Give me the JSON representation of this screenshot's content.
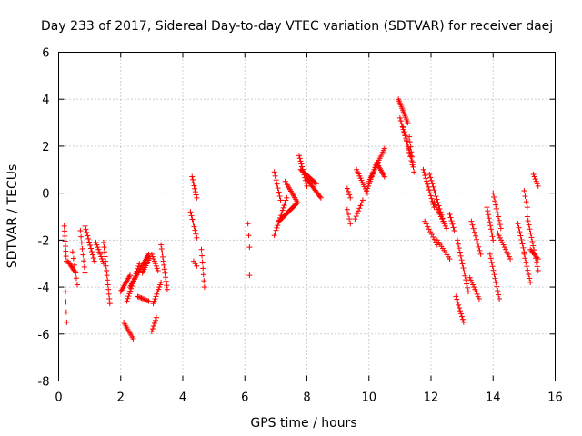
{
  "chart_data": {
    "type": "scatter",
    "title": "Day 233 of 2017, Sidereal Day-to-day VTEC variation (SDTVAR) for receiver daej",
    "xlabel": "GPS time / hours",
    "ylabel": "SDTVAR / TECUs",
    "xlim": [
      0,
      16
    ],
    "ylim": [
      -8,
      6
    ],
    "xticks": [
      "0",
      "2",
      "4",
      "6",
      "8",
      "10",
      "12",
      "14",
      "16"
    ],
    "yticks": [
      "-8",
      "-6",
      "-4",
      "-2",
      "0",
      "2",
      "4",
      "6"
    ],
    "grid": true,
    "marker": "+",
    "color": "#ff0000",
    "series": [
      {
        "name": "SDTVAR",
        "segments": [
          {
            "t0": 0.18,
            "t1": 0.25,
            "v0": -1.4,
            "v1": -2.9,
            "n": 8
          },
          {
            "t0": 0.22,
            "t1": 0.26,
            "v0": -4.2,
            "v1": -5.5,
            "n": 4
          },
          {
            "t0": 0.3,
            "t1": 0.55,
            "v0": -2.9,
            "v1": -3.4,
            "n": 10
          },
          {
            "t0": 0.45,
            "t1": 0.6,
            "v0": -2.5,
            "v1": -3.9,
            "n": 6
          },
          {
            "t0": 0.7,
            "t1": 0.85,
            "v0": -1.6,
            "v1": -3.4,
            "n": 8
          },
          {
            "t0": 0.85,
            "t1": 1.15,
            "v0": -1.4,
            "v1": -2.9,
            "n": 12
          },
          {
            "t0": 1.2,
            "t1": 1.45,
            "v0": -2.1,
            "v1": -3.0,
            "n": 10
          },
          {
            "t0": 1.45,
            "t1": 1.65,
            "v0": -2.1,
            "v1": -4.7,
            "n": 14
          },
          {
            "t0": 2.0,
            "t1": 2.3,
            "v0": -4.2,
            "v1": -3.5,
            "n": 12
          },
          {
            "t0": 2.1,
            "t1": 2.4,
            "v0": -5.5,
            "v1": -6.2,
            "n": 10
          },
          {
            "t0": 2.2,
            "t1": 2.6,
            "v0": -4.6,
            "v1": -3.0,
            "n": 16
          },
          {
            "t0": 2.3,
            "t1": 2.9,
            "v0": -4.0,
            "v1": -2.6,
            "n": 22
          },
          {
            "t0": 2.55,
            "t1": 2.9,
            "v0": -4.4,
            "v1": -4.6,
            "n": 10
          },
          {
            "t0": 2.7,
            "t1": 2.95,
            "v0": -3.4,
            "v1": -2.7,
            "n": 10
          },
          {
            "t0": 3.0,
            "t1": 3.2,
            "v0": -2.6,
            "v1": -3.3,
            "n": 8
          },
          {
            "t0": 3.0,
            "t1": 3.15,
            "v0": -5.9,
            "v1": -5.3,
            "n": 6
          },
          {
            "t0": 3.05,
            "t1": 3.3,
            "v0": -4.7,
            "v1": -3.8,
            "n": 10
          },
          {
            "t0": 3.3,
            "t1": 3.5,
            "v0": -2.2,
            "v1": -4.1,
            "n": 12
          },
          {
            "t0": 4.25,
            "t1": 4.45,
            "v0": -0.8,
            "v1": -1.9,
            "n": 8
          },
          {
            "t0": 4.3,
            "t1": 4.45,
            "v0": 0.7,
            "v1": -0.2,
            "n": 8
          },
          {
            "t0": 4.35,
            "t1": 4.45,
            "v0": -2.9,
            "v1": -3.1,
            "n": 3
          },
          {
            "t0": 4.6,
            "t1": 4.7,
            "v0": -2.4,
            "v1": -4.0,
            "n": 7
          },
          {
            "t0": 6.1,
            "t1": 6.15,
            "v0": -1.3,
            "v1": -2.3,
            "n": 3
          },
          {
            "t0": 6.15,
            "t1": 6.16,
            "v0": -3.5,
            "v1": -3.5,
            "n": 1
          },
          {
            "t0": 6.95,
            "t1": 7.15,
            "v0": 0.9,
            "v1": -0.3,
            "n": 8
          },
          {
            "t0": 6.95,
            "t1": 7.35,
            "v0": -1.8,
            "v1": -0.2,
            "n": 16
          },
          {
            "t0": 7.1,
            "t1": 7.7,
            "v0": -1.2,
            "v1": -0.4,
            "n": 22
          },
          {
            "t0": 7.3,
            "t1": 7.7,
            "v0": 0.5,
            "v1": -0.4,
            "n": 14
          },
          {
            "t0": 7.75,
            "t1": 8.0,
            "v0": 1.6,
            "v1": 0.3,
            "n": 12
          },
          {
            "t0": 7.8,
            "t1": 8.3,
            "v0": 1.0,
            "v1": 0.4,
            "n": 18
          },
          {
            "t0": 8.0,
            "t1": 8.45,
            "v0": 0.6,
            "v1": -0.2,
            "n": 16
          },
          {
            "t0": 9.3,
            "t1": 9.4,
            "v0": 0.2,
            "v1": -0.2,
            "n": 4
          },
          {
            "t0": 9.3,
            "t1": 9.4,
            "v0": -0.7,
            "v1": -1.3,
            "n": 4
          },
          {
            "t0": 9.55,
            "t1": 9.8,
            "v0": -1.1,
            "v1": -0.3,
            "n": 8
          },
          {
            "t0": 9.6,
            "t1": 9.95,
            "v0": 1.0,
            "v1": 0.0,
            "n": 12
          },
          {
            "t0": 9.9,
            "t1": 10.25,
            "v0": 0.0,
            "v1": 1.3,
            "n": 14
          },
          {
            "t0": 10.0,
            "t1": 10.5,
            "v0": 0.5,
            "v1": 1.9,
            "n": 18
          },
          {
            "t0": 10.25,
            "t1": 10.5,
            "v0": 1.3,
            "v1": 0.7,
            "n": 10
          },
          {
            "t0": 10.95,
            "t1": 11.25,
            "v0": 4.0,
            "v1": 3.0,
            "n": 14
          },
          {
            "t0": 11.0,
            "t1": 11.35,
            "v0": 3.2,
            "v1": 1.6,
            "n": 14
          },
          {
            "t0": 11.1,
            "t1": 11.4,
            "v0": 2.8,
            "v1": 1.2,
            "n": 10
          },
          {
            "t0": 11.3,
            "t1": 11.45,
            "v0": 2.4,
            "v1": 0.9,
            "n": 8
          },
          {
            "t0": 11.75,
            "t1": 12.1,
            "v0": 1.0,
            "v1": -0.6,
            "n": 14
          },
          {
            "t0": 11.8,
            "t1": 12.2,
            "v0": -1.2,
            "v1": -2.2,
            "n": 10
          },
          {
            "t0": 11.95,
            "t1": 12.4,
            "v0": 0.8,
            "v1": -1.2,
            "n": 16
          },
          {
            "t0": 12.1,
            "t1": 12.5,
            "v0": -0.4,
            "v1": -1.5,
            "n": 12
          },
          {
            "t0": 12.2,
            "t1": 12.6,
            "v0": -2.0,
            "v1": -2.8,
            "n": 10
          },
          {
            "t0": 12.6,
            "t1": 12.75,
            "v0": -0.9,
            "v1": -1.6,
            "n": 6
          },
          {
            "t0": 12.8,
            "t1": 13.05,
            "v0": -4.4,
            "v1": -5.5,
            "n": 10
          },
          {
            "t0": 12.85,
            "t1": 13.2,
            "v0": -2.0,
            "v1": -4.2,
            "n": 14
          },
          {
            "t0": 13.25,
            "t1": 13.55,
            "v0": -3.6,
            "v1": -4.5,
            "n": 10
          },
          {
            "t0": 13.3,
            "t1": 13.6,
            "v0": -1.2,
            "v1": -2.6,
            "n": 10
          },
          {
            "t0": 13.8,
            "t1": 14.0,
            "v0": -0.6,
            "v1": -2.0,
            "n": 10
          },
          {
            "t0": 13.9,
            "t1": 14.2,
            "v0": -2.6,
            "v1": -4.5,
            "n": 12
          },
          {
            "t0": 14.0,
            "t1": 14.25,
            "v0": 0.0,
            "v1": -1.5,
            "n": 10
          },
          {
            "t0": 14.15,
            "t1": 14.55,
            "v0": -1.7,
            "v1": -2.8,
            "n": 12
          },
          {
            "t0": 14.8,
            "t1": 15.0,
            "v0": -1.3,
            "v1": -2.5,
            "n": 8
          },
          {
            "t0": 15.0,
            "t1": 15.1,
            "v0": 0.1,
            "v1": -0.6,
            "n": 4
          },
          {
            "t0": 15.0,
            "t1": 15.2,
            "v0": -2.6,
            "v1": -3.8,
            "n": 8
          },
          {
            "t0": 15.1,
            "t1": 15.45,
            "v0": -1.0,
            "v1": -3.3,
            "n": 14
          },
          {
            "t0": 15.3,
            "t1": 15.45,
            "v0": 0.8,
            "v1": 0.3,
            "n": 6
          },
          {
            "t0": 15.2,
            "t1": 15.45,
            "v0": -2.4,
            "v1": -2.8,
            "n": 8
          }
        ]
      }
    ]
  }
}
